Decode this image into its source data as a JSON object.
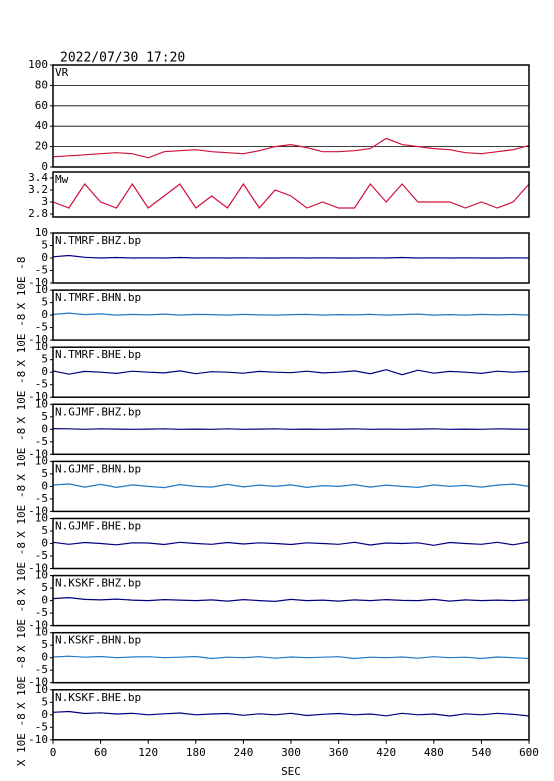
{
  "chart_data": {
    "type": "line",
    "title": "2022/07/30 17:20",
    "xlabel": "SEC",
    "ylabel": "X 10E -8",
    "xlim": [
      0,
      600
    ],
    "xticks": [
      0,
      60,
      120,
      180,
      240,
      300,
      360,
      420,
      480,
      540,
      600
    ],
    "x": [
      0,
      20,
      40,
      60,
      80,
      100,
      120,
      140,
      160,
      180,
      200,
      220,
      240,
      260,
      280,
      300,
      320,
      340,
      360,
      380,
      400,
      420,
      440,
      460,
      480,
      500,
      520,
      540,
      560,
      580,
      600
    ],
    "series": [
      {
        "name": "VR",
        "color": "#d0103c",
        "ylim": [
          0,
          100
        ],
        "yticks": [
          0,
          20,
          40,
          60,
          80,
          100
        ],
        "grid": true,
        "values": [
          10,
          11,
          12,
          13,
          14,
          13,
          9,
          15,
          16,
          17,
          15,
          14,
          13,
          16,
          20,
          22,
          19,
          15,
          15,
          16,
          18,
          28,
          22,
          20,
          18,
          17,
          14,
          13,
          15,
          17,
          21
        ]
      },
      {
        "name": "Mw",
        "color": "#d0103c",
        "ylim": [
          2.75,
          3.5
        ],
        "yticks": [
          2.8,
          3.0,
          3.2,
          3.4
        ],
        "grid": false,
        "values": [
          3.0,
          2.9,
          3.3,
          3.0,
          2.9,
          3.3,
          2.9,
          3.1,
          3.3,
          2.9,
          3.1,
          2.9,
          3.3,
          2.9,
          3.2,
          3.1,
          2.9,
          3.0,
          2.9,
          2.9,
          3.3,
          3.0,
          3.3,
          3.0,
          3.0,
          3.0,
          2.9,
          3.0,
          2.9,
          3.0,
          3.3
        ]
      },
      {
        "name": "N.TMRF.BHZ.bp",
        "color": "#000080",
        "ylim": [
          -10,
          10
        ],
        "yticks": [
          -10,
          -5,
          0,
          5,
          10
        ],
        "grid": false,
        "values": [
          0.5,
          1,
          0.3,
          0,
          0.2,
          0,
          0.1,
          0,
          0.2,
          0,
          0.1,
          0,
          0.1,
          0,
          0,
          0.1,
          0,
          0.1,
          0,
          0,
          0.1,
          0,
          0.2,
          0,
          0.1,
          0,
          0.1,
          0,
          0,
          0.1,
          0
        ]
      },
      {
        "name": "N.TMRF.BHN.bp",
        "color": "#1e7ac8",
        "ylim": [
          -10,
          10
        ],
        "yticks": [
          -10,
          -5,
          0,
          5,
          10
        ],
        "grid": false,
        "values": [
          0.3,
          0.8,
          0.2,
          0.5,
          0,
          0.3,
          0.1,
          0.4,
          0,
          0.3,
          0.2,
          0,
          0.3,
          0.1,
          0,
          0.2,
          0.3,
          0,
          0.2,
          0.1,
          0.3,
          0,
          0.2,
          0.4,
          0,
          0.2,
          0,
          0.3,
          0.1,
          0.3,
          0
        ]
      },
      {
        "name": "N.TMRF.BHE.bp",
        "color": "#000080",
        "ylim": [
          -10,
          10
        ],
        "yticks": [
          -10,
          -5,
          0,
          5,
          10
        ],
        "grid": false,
        "values": [
          0.5,
          -0.8,
          0.3,
          0,
          -0.5,
          0.4,
          0,
          -0.3,
          0.5,
          -0.6,
          0.2,
          0,
          -0.4,
          0.3,
          0,
          -0.2,
          0.4,
          -0.3,
          0,
          0.5,
          -0.6,
          1,
          -1,
          0.8,
          -0.4,
          0.3,
          0,
          -0.5,
          0.4,
          0,
          0.3
        ]
      },
      {
        "name": "N.GJMF.BHZ.bp",
        "color": "#000080",
        "ylim": [
          -10,
          10
        ],
        "yticks": [
          -10,
          -5,
          0,
          5,
          10
        ],
        "grid": false,
        "values": [
          0.3,
          0.2,
          0,
          0.2,
          0.1,
          0,
          0.1,
          0.2,
          0,
          0.1,
          0,
          0.2,
          0,
          0.1,
          0.2,
          0,
          0.1,
          0,
          0.1,
          0.2,
          0,
          0.1,
          0,
          0.1,
          0.2,
          0,
          0.1,
          0,
          0.2,
          0.1,
          0
        ]
      },
      {
        "name": "N.GJMF.BHN.bp",
        "color": "#1e7ac8",
        "ylim": [
          -10,
          10
        ],
        "yticks": [
          -10,
          -5,
          0,
          5,
          10
        ],
        "grid": false,
        "values": [
          0.5,
          1,
          -0.3,
          0.8,
          -0.4,
          0.6,
          0,
          -0.5,
          0.7,
          0,
          -0.3,
          0.8,
          -0.2,
          0.5,
          0,
          0.6,
          -0.4,
          0.3,
          0,
          0.7,
          -0.3,
          0.5,
          0,
          -0.4,
          0.6,
          0,
          0.4,
          -0.3,
          0.5,
          0.9,
          0
        ]
      },
      {
        "name": "N.GJMF.BHE.bp",
        "color": "#000080",
        "ylim": [
          -10,
          10
        ],
        "yticks": [
          -10,
          -5,
          0,
          5,
          10
        ],
        "grid": false,
        "values": [
          0.5,
          -0.3,
          0.4,
          0,
          -0.5,
          0.3,
          0.2,
          -0.4,
          0.5,
          0,
          -0.3,
          0.4,
          -0.2,
          0.3,
          0,
          -0.4,
          0.3,
          0,
          -0.3,
          0.5,
          -0.6,
          0.2,
          0,
          0.3,
          -0.7,
          0.4,
          0,
          -0.3,
          0.5,
          -0.5,
          0.6
        ]
      },
      {
        "name": "N.KSKF.BHZ.bp",
        "color": "#000080",
        "ylim": [
          -10,
          10
        ],
        "yticks": [
          -10,
          -5,
          0,
          5,
          10
        ],
        "grid": false,
        "values": [
          0.8,
          1.2,
          0.5,
          0.3,
          0.6,
          0.2,
          0,
          0.4,
          0.2,
          0,
          0.3,
          -0.2,
          0.4,
          0,
          -0.3,
          0.5,
          0,
          0.2,
          -0.2,
          0.3,
          0,
          0.4,
          0.1,
          0,
          0.5,
          -0.2,
          0.3,
          0,
          0.2,
          0,
          0.3
        ]
      },
      {
        "name": "N.KSKF.BHN.bp",
        "color": "#1e7ac8",
        "ylim": [
          -10,
          10
        ],
        "yticks": [
          -10,
          -5,
          0,
          5,
          10
        ],
        "grid": false,
        "values": [
          0.3,
          0.6,
          0.2,
          0.5,
          0,
          0.3,
          0.4,
          0,
          0.2,
          0.5,
          -0.3,
          0.2,
          0,
          0.4,
          -0.2,
          0.3,
          0,
          0.2,
          0.4,
          -0.3,
          0.2,
          0,
          0.3,
          -0.2,
          0.4,
          0,
          0.2,
          -0.3,
          0.3,
          0,
          -0.3
        ]
      },
      {
        "name": "N.KSKF.BHE.bp",
        "color": "#000080",
        "ylim": [
          -10,
          10
        ],
        "yticks": [
          -10,
          -5,
          0,
          5,
          10
        ],
        "grid": false,
        "values": [
          1,
          1.3,
          0.5,
          0.8,
          0.3,
          0.6,
          0,
          0.4,
          0.7,
          0,
          0.3,
          0.5,
          -0.2,
          0.4,
          0,
          0.6,
          -0.3,
          0.2,
          0.5,
          0,
          0.3,
          -0.4,
          0.6,
          0,
          0.3,
          -0.5,
          0.4,
          0,
          0.6,
          0.2,
          -0.5
        ]
      }
    ]
  }
}
